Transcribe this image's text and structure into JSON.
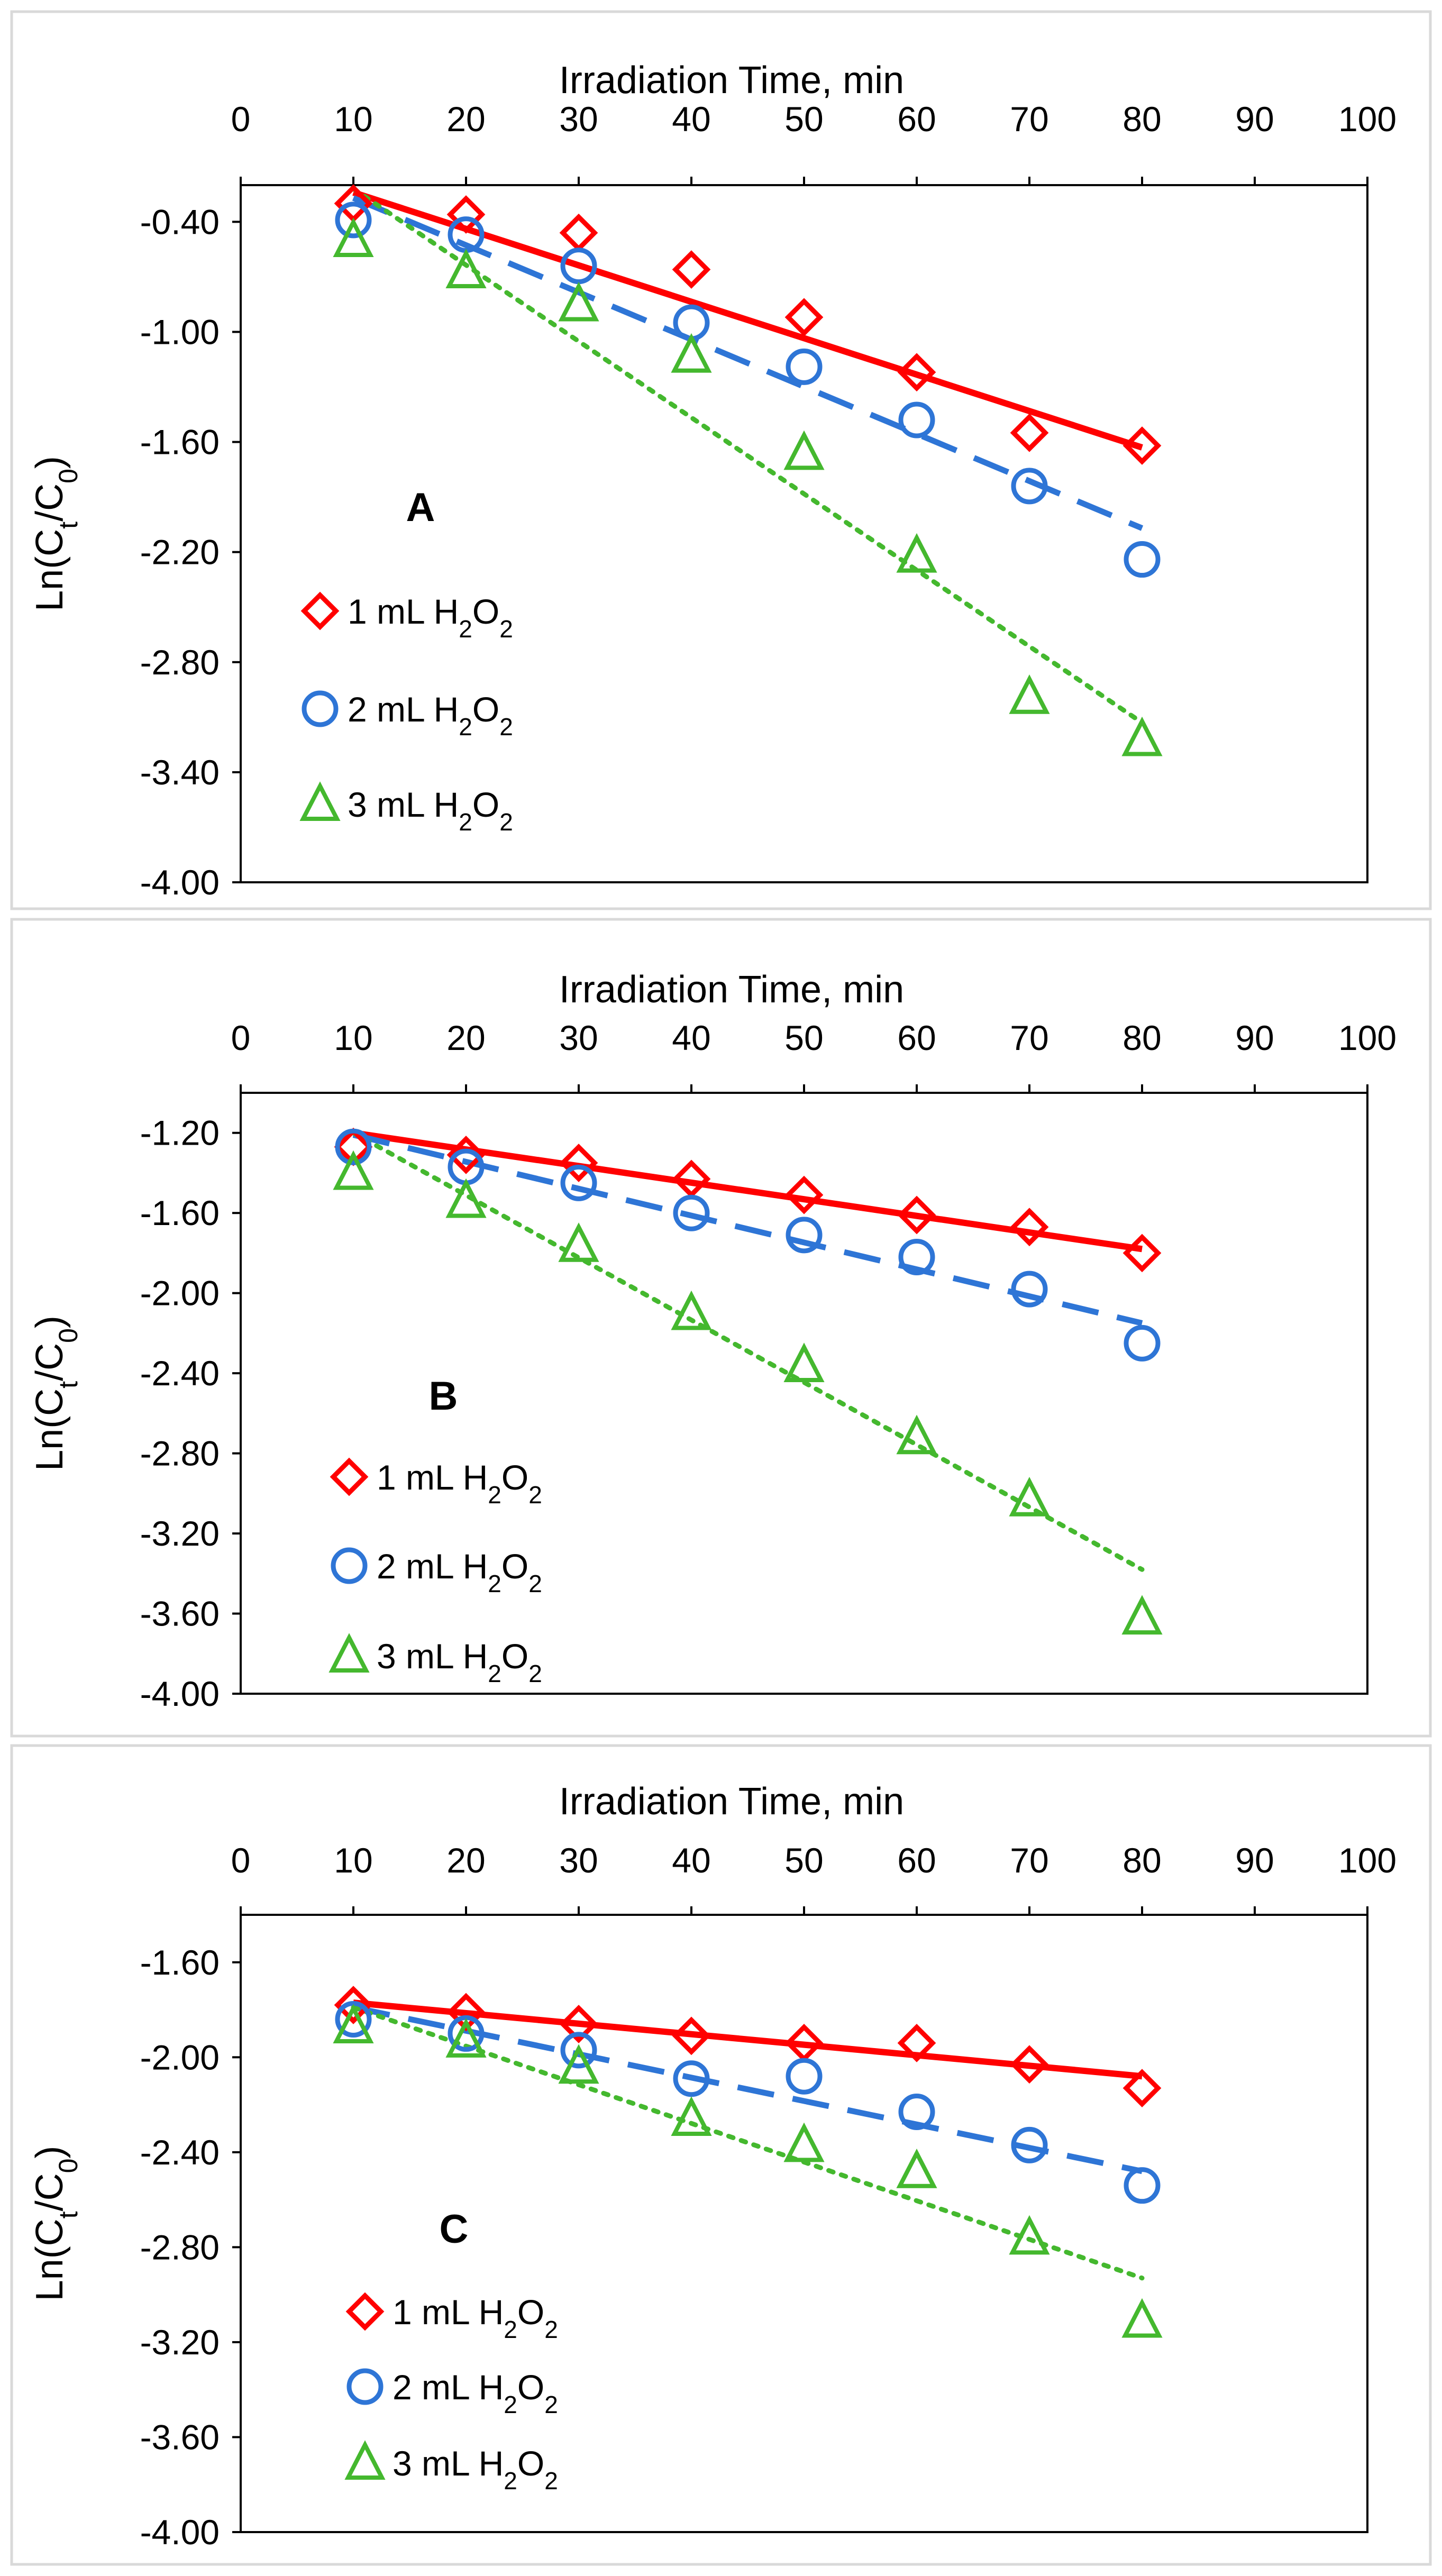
{
  "chart_data": [
    {
      "type": "scatter",
      "panel_label": "A",
      "xlabel": "Irradiation Time, min",
      "ylabel": "Ln(Ct/C0)",
      "ylabel_main": "Ln(C",
      "ylabel_sub1": "t",
      "ylabel_mid": "/C",
      "ylabel_sub2": "0",
      "ylabel_end": ")",
      "xlim": [
        0,
        100
      ],
      "ylim": [
        -4.0,
        -0.2
      ],
      "xticks": [
        "0",
        "10",
        "20",
        "30",
        "40",
        "50",
        "60",
        "70",
        "80",
        "90",
        "100"
      ],
      "yticks": [
        "-0.40",
        "-1.00",
        "-1.60",
        "-2.20",
        "-2.80",
        "-3.40",
        "-4.00"
      ],
      "series": [
        {
          "name": "1 mL H2O2",
          "label_main": "1 mL H",
          "label_sub1": "2",
          "label_mid": "O",
          "label_sub2": "2",
          "marker": "diamond",
          "color": "#ff0000",
          "line": "solid",
          "x": [
            10,
            20,
            30,
            40,
            50,
            60,
            70,
            80
          ],
          "y": [
            -0.3,
            -0.36,
            -0.46,
            -0.66,
            -0.92,
            -1.22,
            -1.55,
            -1.62
          ],
          "fit": [
            [
              10,
              -0.24
            ],
            [
              80,
              -1.63
            ]
          ]
        },
        {
          "name": "2 mL H2O2",
          "label_main": "2 mL H",
          "label_sub1": "2",
          "label_mid": "O",
          "label_sub2": "2",
          "marker": "circle",
          "color": "#2e75d6",
          "line": "dashed",
          "x": [
            10,
            20,
            30,
            40,
            50,
            60,
            70,
            80
          ],
          "y": [
            -0.39,
            -0.47,
            -0.64,
            -0.95,
            -1.19,
            -1.48,
            -1.84,
            -2.24
          ],
          "fit": [
            [
              10,
              -0.27
            ],
            [
              80,
              -2.07
            ]
          ]
        },
        {
          "name": "3 mL H2O2",
          "label_main": "3 mL H",
          "label_sub1": "2",
          "label_mid": "O",
          "label_sub2": "2",
          "marker": "triangle",
          "color": "#44b82e",
          "line": "dotted",
          "x": [
            10,
            20,
            30,
            40,
            50,
            60,
            70,
            80
          ],
          "y": [
            -0.5,
            -0.67,
            -0.85,
            -1.13,
            -1.66,
            -2.22,
            -2.99,
            -3.22
          ],
          "fit": [
            [
              10,
              -0.22
            ],
            [
              80,
              -3.13
            ]
          ]
        }
      ]
    },
    {
      "type": "scatter",
      "panel_label": "B",
      "xlabel": "Irradiation Time, min",
      "ylabel": "Ln(Ct/C0)",
      "ylabel_main": "Ln(C",
      "ylabel_sub1": "t",
      "ylabel_mid": "/C",
      "ylabel_sub2": "0",
      "ylabel_end": ")",
      "xlim": [
        0,
        100
      ],
      "ylim": [
        -4.0,
        -1.0
      ],
      "xticks": [
        "0",
        "10",
        "20",
        "30",
        "40",
        "50",
        "60",
        "70",
        "80",
        "90",
        "100"
      ],
      "yticks": [
        "-1.20",
        "-1.60",
        "-2.00",
        "-2.40",
        "-2.80",
        "-3.20",
        "-3.60",
        "-4.00"
      ],
      "series": [
        {
          "name": "1 mL H2O2",
          "label_main": "1 mL H",
          "label_sub1": "2",
          "label_mid": "O",
          "label_sub2": "2",
          "marker": "diamond",
          "color": "#ff0000",
          "line": "solid",
          "x": [
            10,
            20,
            30,
            40,
            50,
            60,
            70,
            80
          ],
          "y": [
            -1.27,
            -1.31,
            -1.35,
            -1.43,
            -1.51,
            -1.61,
            -1.67,
            -1.8
          ],
          "fit": [
            [
              10,
              -1.2
            ],
            [
              80,
              -1.78
            ]
          ]
        },
        {
          "name": "2 mL H2O2",
          "label_main": "2 mL H",
          "label_sub1": "2",
          "label_mid": "O",
          "label_sub2": "2",
          "marker": "circle",
          "color": "#2e75d6",
          "line": "dashed",
          "x": [
            10,
            20,
            30,
            40,
            50,
            60,
            70,
            80
          ],
          "y": [
            -1.27,
            -1.37,
            -1.45,
            -1.6,
            -1.71,
            -1.82,
            -1.98,
            -2.25
          ],
          "fit": [
            [
              10,
              -1.21
            ],
            [
              80,
              -2.15
            ]
          ]
        },
        {
          "name": "3 mL H2O2",
          "label_main": "3 mL H",
          "label_sub1": "2",
          "label_mid": "O",
          "label_sub2": "2",
          "marker": "triangle",
          "color": "#44b82e",
          "line": "dotted",
          "x": [
            10,
            20,
            30,
            40,
            50,
            60,
            70,
            80
          ],
          "y": [
            -1.4,
            -1.54,
            -1.76,
            -2.1,
            -2.36,
            -2.72,
            -3.03,
            -3.62
          ],
          "fit": [
            [
              10,
              -1.2
            ],
            [
              80,
              -3.38
            ]
          ]
        }
      ]
    },
    {
      "type": "scatter",
      "panel_label": "C",
      "xlabel": "Irradiation Time, min",
      "ylabel": "Ln(Ct/C0)",
      "ylabel_main": "Ln(C",
      "ylabel_sub1": "t",
      "ylabel_mid": "/C",
      "ylabel_sub2": "0",
      "ylabel_end": ")",
      "xlim": [
        0,
        100
      ],
      "ylim": [
        -4.0,
        -1.4
      ],
      "xticks": [
        "0",
        "10",
        "20",
        "30",
        "40",
        "50",
        "60",
        "70",
        "80",
        "90",
        "100"
      ],
      "yticks": [
        "-1.60",
        "-2.00",
        "-2.40",
        "-2.80",
        "-3.20",
        "-3.60",
        "-4.00"
      ],
      "series": [
        {
          "name": "1 mL H2O2",
          "label_main": "1 mL H",
          "label_sub1": "2",
          "label_mid": "O",
          "label_sub2": "2",
          "marker": "diamond",
          "color": "#ff0000",
          "line": "solid",
          "x": [
            10,
            20,
            30,
            40,
            50,
            60,
            70,
            80
          ],
          "y": [
            -1.78,
            -1.81,
            -1.86,
            -1.91,
            -1.94,
            -1.94,
            -2.03,
            -2.13
          ],
          "fit": [
            [
              10,
              -1.77
            ],
            [
              80,
              -2.08
            ]
          ]
        },
        {
          "name": "2 mL H2O2",
          "label_main": "2 mL H",
          "label_sub1": "2",
          "label_mid": "O",
          "label_sub2": "2",
          "marker": "circle",
          "color": "#2e75d6",
          "line": "dashed",
          "x": [
            10,
            20,
            30,
            40,
            50,
            60,
            70,
            80
          ],
          "y": [
            -1.84,
            -1.9,
            -1.97,
            -2.09,
            -2.08,
            -2.23,
            -2.37,
            -2.54
          ],
          "fit": [
            [
              10,
              -1.79
            ],
            [
              80,
              -2.48
            ]
          ]
        },
        {
          "name": "3 mL H2O2",
          "label_main": "3 mL H",
          "label_sub1": "2",
          "label_mid": "O",
          "label_sub2": "2",
          "marker": "triangle",
          "color": "#44b82e",
          "line": "dotted",
          "x": [
            10,
            20,
            30,
            40,
            50,
            60,
            70,
            80
          ],
          "y": [
            -1.87,
            -1.93,
            -2.04,
            -2.26,
            -2.37,
            -2.48,
            -2.76,
            -3.11
          ],
          "fit": [
            [
              10,
              -1.79
            ],
            [
              80,
              -2.93
            ]
          ]
        }
      ]
    }
  ]
}
